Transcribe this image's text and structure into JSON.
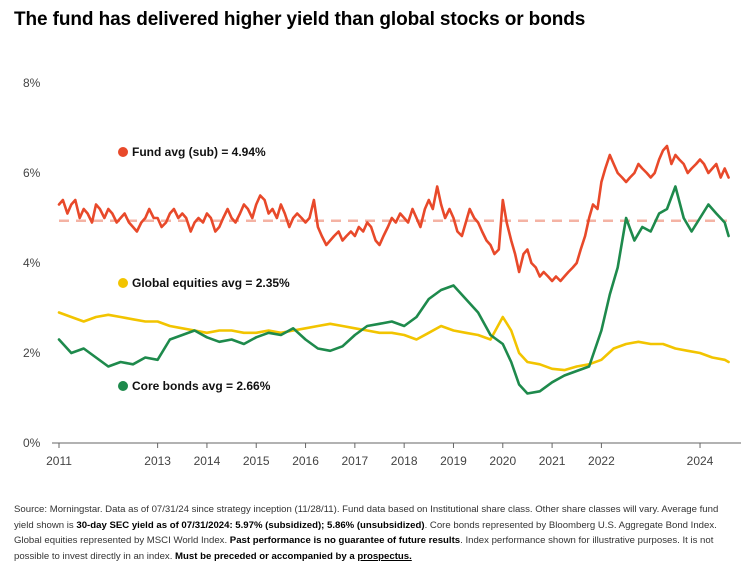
{
  "title": "The fund has delivered higher yield than global stocks or bonds",
  "chart_data": {
    "type": "line",
    "title": "The fund has delivered higher yield than global stocks or bonds",
    "xlabel": "",
    "ylabel": "",
    "xlim": [
      2011.0,
      2024.75
    ],
    "ylim": [
      0,
      8
    ],
    "x_ticks": [
      "2011",
      "2013",
      "2014",
      "2015",
      "2016",
      "2017",
      "2018",
      "2019",
      "2020",
      "2021",
      "2022",
      "2024"
    ],
    "y_ticks": [
      "0%",
      "2%",
      "4%",
      "6%",
      "8%"
    ],
    "grid": false,
    "reference_line": {
      "value": 4.94,
      "style": "dashed",
      "color": "#f4b3a4"
    },
    "series": [
      {
        "name": "Fund avg (sub) = 4.94%",
        "color": "#e8492a",
        "x": [
          2011.0,
          2011.08,
          2011.17,
          2011.25,
          2011.33,
          2011.42,
          2011.5,
          2011.58,
          2011.67,
          2011.75,
          2011.83,
          2011.92,
          2012.0,
          2012.08,
          2012.17,
          2012.25,
          2012.33,
          2012.42,
          2012.5,
          2012.58,
          2012.67,
          2012.75,
          2012.83,
          2012.92,
          2013.0,
          2013.08,
          2013.17,
          2013.25,
          2013.33,
          2013.42,
          2013.5,
          2013.58,
          2013.67,
          2013.75,
          2013.83,
          2013.92,
          2014.0,
          2014.08,
          2014.17,
          2014.25,
          2014.33,
          2014.42,
          2014.5,
          2014.58,
          2014.67,
          2014.75,
          2014.83,
          2014.92,
          2015.0,
          2015.08,
          2015.17,
          2015.25,
          2015.33,
          2015.42,
          2015.5,
          2015.58,
          2015.67,
          2015.75,
          2015.83,
          2015.92,
          2016.0,
          2016.08,
          2016.17,
          2016.25,
          2016.33,
          2016.42,
          2016.5,
          2016.58,
          2016.67,
          2016.75,
          2016.83,
          2016.92,
          2017.0,
          2017.08,
          2017.17,
          2017.25,
          2017.33,
          2017.42,
          2017.5,
          2017.58,
          2017.67,
          2017.75,
          2017.83,
          2017.92,
          2018.0,
          2018.08,
          2018.17,
          2018.25,
          2018.33,
          2018.42,
          2018.5,
          2018.58,
          2018.67,
          2018.75,
          2018.83,
          2018.92,
          2019.0,
          2019.08,
          2019.17,
          2019.25,
          2019.33,
          2019.42,
          2019.5,
          2019.58,
          2019.67,
          2019.75,
          2019.83,
          2019.92,
          2020.0,
          2020.08,
          2020.17,
          2020.25,
          2020.33,
          2020.42,
          2020.5,
          2020.58,
          2020.67,
          2020.75,
          2020.83,
          2020.92,
          2021.0,
          2021.08,
          2021.17,
          2021.25,
          2021.33,
          2021.42,
          2021.5,
          2021.58,
          2021.67,
          2021.75,
          2021.83,
          2021.92,
          2022.0,
          2022.08,
          2022.17,
          2022.25,
          2022.33,
          2022.42,
          2022.5,
          2022.58,
          2022.67,
          2022.75,
          2022.83,
          2022.92,
          2023.0,
          2023.08,
          2023.17,
          2023.25,
          2023.33,
          2023.42,
          2023.5,
          2023.58,
          2023.67,
          2023.75,
          2023.83,
          2023.92,
          2024.0,
          2024.08,
          2024.17,
          2024.25,
          2024.33,
          2024.42,
          2024.5,
          2024.58
        ],
        "values": [
          5.3,
          5.4,
          5.1,
          5.3,
          5.4,
          5.0,
          5.2,
          5.1,
          4.9,
          5.3,
          5.2,
          5.0,
          5.2,
          5.1,
          4.9,
          5.0,
          5.1,
          4.9,
          4.8,
          4.7,
          4.9,
          5.0,
          5.2,
          5.0,
          5.0,
          4.8,
          4.9,
          5.1,
          5.2,
          5.0,
          5.1,
          5.0,
          4.7,
          4.9,
          5.0,
          4.9,
          5.1,
          5.0,
          4.7,
          4.8,
          5.0,
          5.2,
          5.0,
          4.9,
          5.1,
          5.3,
          5.2,
          5.0,
          5.3,
          5.5,
          5.4,
          5.1,
          5.2,
          5.0,
          5.3,
          5.1,
          4.8,
          5.0,
          5.1,
          5.0,
          4.9,
          5.0,
          5.4,
          4.8,
          4.6,
          4.4,
          4.5,
          4.6,
          4.7,
          4.5,
          4.6,
          4.7,
          4.6,
          4.8,
          4.7,
          4.9,
          4.8,
          4.5,
          4.4,
          4.6,
          4.8,
          5.0,
          4.9,
          5.1,
          5.0,
          4.9,
          5.2,
          5.0,
          4.8,
          5.2,
          5.4,
          5.2,
          5.7,
          5.3,
          5.0,
          5.2,
          5.0,
          4.7,
          4.6,
          4.9,
          5.2,
          5.0,
          4.9,
          4.7,
          4.5,
          4.4,
          4.2,
          4.3,
          5.4,
          4.9,
          4.5,
          4.2,
          3.8,
          4.2,
          4.3,
          4.0,
          3.9,
          3.7,
          3.8,
          3.7,
          3.6,
          3.7,
          3.6,
          3.7,
          3.8,
          3.9,
          4.0,
          4.3,
          4.6,
          5.0,
          5.3,
          5.2,
          5.8,
          6.1,
          6.4,
          6.2,
          6.0,
          5.9,
          5.8,
          5.9,
          6.0,
          6.2,
          6.1,
          6.0,
          5.9,
          6.0,
          6.3,
          6.5,
          6.6,
          6.2,
          6.4,
          6.3,
          6.2,
          6.0,
          6.1,
          6.2,
          6.3,
          6.2,
          6.0,
          6.1,
          6.2,
          5.9,
          6.1,
          5.9
        ]
      },
      {
        "name": "Global equities avg = 2.35%",
        "color": "#f2c400",
        "x": [
          2011.0,
          2011.25,
          2011.5,
          2011.75,
          2012.0,
          2012.25,
          2012.5,
          2012.75,
          2013.0,
          2013.25,
          2013.5,
          2013.75,
          2014.0,
          2014.25,
          2014.5,
          2014.75,
          2015.0,
          2015.25,
          2015.5,
          2015.75,
          2016.0,
          2016.25,
          2016.5,
          2016.75,
          2017.0,
          2017.25,
          2017.5,
          2017.75,
          2018.0,
          2018.25,
          2018.5,
          2018.75,
          2019.0,
          2019.25,
          2019.5,
          2019.75,
          2020.0,
          2020.17,
          2020.33,
          2020.5,
          2020.75,
          2021.0,
          2021.25,
          2021.5,
          2021.75,
          2022.0,
          2022.25,
          2022.5,
          2022.75,
          2023.0,
          2023.25,
          2023.5,
          2023.75,
          2024.0,
          2024.25,
          2024.5,
          2024.58
        ],
        "values": [
          2.9,
          2.8,
          2.7,
          2.8,
          2.85,
          2.8,
          2.75,
          2.7,
          2.7,
          2.6,
          2.55,
          2.5,
          2.45,
          2.5,
          2.5,
          2.45,
          2.45,
          2.5,
          2.45,
          2.5,
          2.55,
          2.6,
          2.65,
          2.6,
          2.55,
          2.5,
          2.45,
          2.45,
          2.4,
          2.3,
          2.45,
          2.6,
          2.5,
          2.45,
          2.4,
          2.3,
          2.8,
          2.5,
          2.0,
          1.8,
          1.75,
          1.65,
          1.62,
          1.7,
          1.75,
          1.85,
          2.1,
          2.2,
          2.25,
          2.2,
          2.2,
          2.1,
          2.05,
          2.0,
          1.9,
          1.85,
          1.8
        ]
      },
      {
        "name": "Core bonds avg = 2.66%",
        "color": "#1e8a4c",
        "x": [
          2011.0,
          2011.25,
          2011.5,
          2011.75,
          2012.0,
          2012.25,
          2012.5,
          2012.75,
          2013.0,
          2013.25,
          2013.5,
          2013.75,
          2014.0,
          2014.25,
          2014.5,
          2014.75,
          2015.0,
          2015.25,
          2015.5,
          2015.75,
          2016.0,
          2016.25,
          2016.5,
          2016.75,
          2017.0,
          2017.25,
          2017.5,
          2017.75,
          2018.0,
          2018.25,
          2018.5,
          2018.75,
          2019.0,
          2019.25,
          2019.5,
          2019.75,
          2020.0,
          2020.17,
          2020.33,
          2020.5,
          2020.75,
          2021.0,
          2021.25,
          2021.5,
          2021.75,
          2022.0,
          2022.17,
          2022.33,
          2022.5,
          2022.67,
          2022.83,
          2023.0,
          2023.17,
          2023.33,
          2023.5,
          2023.67,
          2023.83,
          2024.0,
          2024.17,
          2024.33,
          2024.5,
          2024.58
        ],
        "values": [
          2.3,
          2.0,
          2.1,
          1.9,
          1.7,
          1.8,
          1.75,
          1.9,
          1.85,
          2.3,
          2.4,
          2.5,
          2.35,
          2.25,
          2.3,
          2.2,
          2.35,
          2.45,
          2.4,
          2.55,
          2.3,
          2.1,
          2.05,
          2.15,
          2.4,
          2.6,
          2.65,
          2.7,
          2.6,
          2.8,
          3.2,
          3.4,
          3.5,
          3.2,
          2.9,
          2.4,
          2.2,
          1.8,
          1.3,
          1.1,
          1.15,
          1.35,
          1.5,
          1.6,
          1.7,
          2.5,
          3.3,
          3.9,
          5.0,
          4.5,
          4.8,
          4.7,
          5.1,
          5.2,
          5.7,
          5.0,
          4.7,
          5.0,
          5.3,
          5.1,
          4.9,
          4.6
        ]
      }
    ],
    "annotations": [
      {
        "text": "Fund avg (sub) = 4.94%",
        "color": "#e8492a"
      },
      {
        "text": "Global equities avg = 2.35%",
        "color": "#f2c400"
      },
      {
        "text": "Core bonds avg = 2.66%",
        "color": "#1e8a4c"
      }
    ]
  },
  "footnote": {
    "p1": "Source: Morningstar. Data as of 07/31/24 since strategy inception (11/28/11). Fund data based on Institutional share class. Other share classes will vary. Average fund yield shown is ",
    "b1": "30-day SEC yield as of 07/31/2024: 5.97% (subsidized); 5.86% (unsubsidized)",
    "p2": ". Core bonds represented by Bloomberg U.S. Aggregate Bond Index. Global equities represented by MSCI World Index. ",
    "b2": "Past performance is no guarantee of future results",
    "p3": ". Index performance shown for illustrative purposes. It is not possible to invest directly in an index. ",
    "b3": "Must be preceded or accompanied by a ",
    "link": "prospectus.",
    "end": ""
  }
}
